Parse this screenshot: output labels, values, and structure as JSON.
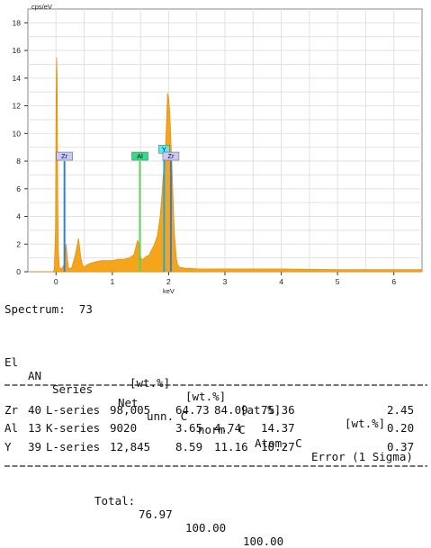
{
  "chart_data": {
    "type": "line",
    "ylabel": "cps/eV",
    "xlabel": "keV",
    "xlim": [
      -0.5,
      6.5
    ],
    "ylim": [
      0,
      19
    ],
    "xticks": [
      "0",
      "1",
      "2",
      "3",
      "4",
      "5",
      "6"
    ],
    "yticks": [
      "0",
      "2",
      "4",
      "6",
      "8",
      "10",
      "12",
      "14",
      "16",
      "18"
    ],
    "grid": true,
    "fill_color": "#f5a51c",
    "x": [
      -0.5,
      -0.05,
      -0.03,
      -0.01,
      0.0,
      0.01,
      0.02,
      0.03,
      0.04,
      0.06,
      0.1,
      0.14,
      0.18,
      0.2,
      0.22,
      0.24,
      0.28,
      0.34,
      0.4,
      0.44,
      0.47,
      0.5,
      0.52,
      0.55,
      0.6,
      0.7,
      0.8,
      0.9,
      1.0,
      1.1,
      1.2,
      1.3,
      1.38,
      1.42,
      1.45,
      1.48,
      1.5,
      1.52,
      1.55,
      1.6,
      1.65,
      1.7,
      1.75,
      1.8,
      1.85,
      1.88,
      1.9,
      1.92,
      1.94,
      1.96,
      1.98,
      2.0,
      2.02,
      2.04,
      2.06,
      2.08,
      2.1,
      2.12,
      2.14,
      2.16,
      2.2,
      2.25,
      2.3,
      2.4,
      2.5,
      3.0,
      3.5,
      4.0,
      5.0,
      6.0,
      6.5
    ],
    "y": [
      0,
      0,
      0.2,
      3,
      12,
      15.5,
      14,
      5,
      1.5,
      0.3,
      0.2,
      0.5,
      2.0,
      1.0,
      0.3,
      0.2,
      0.3,
      1.2,
      2.4,
      1.0,
      0.5,
      0.3,
      0.4,
      0.5,
      0.6,
      0.7,
      0.8,
      0.8,
      0.8,
      0.9,
      0.9,
      1.0,
      1.2,
      1.8,
      2.3,
      1.8,
      1.1,
      0.9,
      0.9,
      1.1,
      1.2,
      1.6,
      2.0,
      2.6,
      4.0,
      5.5,
      6.8,
      7.5,
      8.5,
      10.5,
      12.9,
      12.6,
      11.5,
      9.5,
      7.5,
      5.2,
      2.9,
      1.8,
      0.9,
      0.5,
      0.3,
      0.3,
      0.25,
      0.25,
      0.2,
      0.2,
      0.2,
      0.2,
      0.15,
      0.15,
      0.15
    ],
    "markers": [
      {
        "label": "Zr",
        "x": 0.15,
        "y": 8,
        "color": "#2f7de0",
        "box": "#c9c9ff"
      },
      {
        "label": "Al",
        "x": 1.49,
        "y": 8,
        "color": "#5cd05c",
        "box": "#33dd88"
      },
      {
        "label": "Y",
        "x": 1.92,
        "y": 8.5,
        "color": "#20a8d8",
        "box": "#55eeee"
      },
      {
        "label": "Zr",
        "x": 2.04,
        "y": 8,
        "color": "#2f7de0",
        "box": "#c9c9ff"
      }
    ]
  },
  "spectrum": {
    "label": "Spectrum:",
    "value": "73"
  },
  "table": {
    "header1": [
      "El",
      "AN",
      "Series",
      "Net",
      "unn. C",
      "norm. C",
      "Atom. C",
      "Error (1 Sigma)"
    ],
    "header2": [
      "[wt.%]",
      "[wt.%]",
      "[at.%]",
      "[wt.%]"
    ],
    "rows": [
      {
        "el": "Zr",
        "an": "40",
        "series": "L-series",
        "net": "98,005",
        "unn": "64.73",
        "norm": "84.09",
        "atom": "75.36",
        "err": "2.45"
      },
      {
        "el": "Al",
        "an": "13",
        "series": "K-series",
        "net": "9020",
        "unn": "3.65",
        "norm": "4.74",
        "atom": "14.37",
        "err": "0.20"
      },
      {
        "el": "Y",
        "an": "39",
        "series": "L-series",
        "net": "12,845",
        "unn": "8.59",
        "norm": "11.16",
        "atom": "10.27",
        "err": "0.37"
      }
    ],
    "total": {
      "label": "Total:",
      "unn": "76.97",
      "norm": "100.00",
      "atom": "100.00"
    }
  }
}
